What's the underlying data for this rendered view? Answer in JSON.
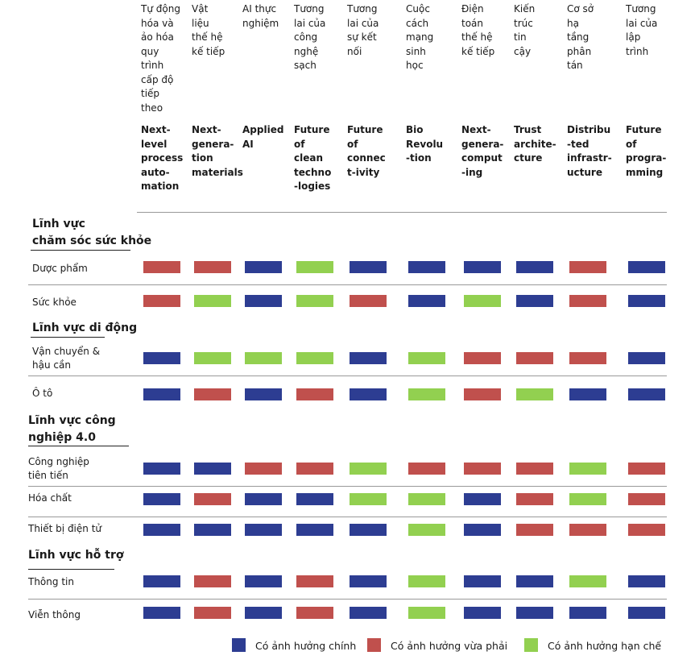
{
  "columns": [
    {
      "vi": "Tự động\nhóa và\nảo hóa\nquy\ntrình\ncấp độ\ntiếp\ntheo",
      "en": "Next-\nlevel\nprocess\nauto-\nmation"
    },
    {
      "vi": "Vật\nliệu\nthế hệ\nkế tiếp",
      "en": "Next-\ngenera-\ntion\nmaterials"
    },
    {
      "vi": "AI thực\nnghiệm",
      "en": "Applied\nAI"
    },
    {
      "vi": "Tương\nlai của\ncông\nnghệ\nsạch",
      "en": "Future\nof\nclean\ntechno\n-logies"
    },
    {
      "vi": "Tương\nlai của\nsự kết\nnối",
      "en": "Future\nof\nconnec\nt-ivity"
    },
    {
      "vi": "Cuộc\ncách\nmạng\nsinh\nhọc",
      "en": "Bio\nRevolu\n-tion"
    },
    {
      "vi": "Điện\ntoán\nthế hệ\nkế tiếp",
      "en": "Next-\ngenera-\ncomput\n-ing"
    },
    {
      "vi": "Kiến\ntrúc\ntin\ncậy",
      "en": "Trust\narchite-\ncture"
    },
    {
      "vi": "Cơ sở\nhạ\ntầng\nphân\ntán",
      "en": "Distribu\n-ted\ninfrastr-\nucture"
    },
    {
      "vi": "Tương\nlai của\nlập\ntrình",
      "en": "Future\nof\nprogra-\nmming"
    }
  ],
  "sections": [
    {
      "title": "Lĩnh vực\nchăm sóc sức khỏe",
      "rows": [
        {
          "label": "Dược phẩm",
          "impacts": [
            1,
            1,
            0,
            2,
            0,
            0,
            0,
            0,
            1,
            0
          ]
        },
        {
          "label": "Sức khỏe",
          "impacts": [
            1,
            2,
            0,
            2,
            1,
            0,
            2,
            0,
            1,
            0
          ]
        }
      ]
    },
    {
      "title": "Lĩnh vực di động",
      "rows": [
        {
          "label": "Vận chuyển &\nhậu cần",
          "impacts": [
            0,
            2,
            2,
            2,
            0,
            2,
            1,
            1,
            1,
            0
          ]
        },
        {
          "label": "Ô tô",
          "impacts": [
            0,
            1,
            0,
            1,
            0,
            2,
            1,
            2,
            0,
            0
          ]
        }
      ]
    },
    {
      "title": "Lĩnh vực công\nnghiệp 4.0",
      "rows": [
        {
          "label": "Công nghiệp\ntiên tiến",
          "impacts": [
            0,
            0,
            1,
            1,
            2,
            1,
            1,
            1,
            2,
            1
          ]
        },
        {
          "label": "Hóa chất",
          "impacts": [
            0,
            1,
            0,
            0,
            2,
            2,
            0,
            1,
            2,
            1
          ]
        },
        {
          "label": "Thiết bị điện tử",
          "impacts": [
            0,
            0,
            0,
            0,
            0,
            2,
            0,
            1,
            1,
            1
          ]
        }
      ]
    },
    {
      "title": "Lĩnh vực hỗ trợ",
      "rows": [
        {
          "label": "Thông tin",
          "impacts": [
            0,
            1,
            0,
            1,
            0,
            2,
            0,
            0,
            2,
            0
          ]
        },
        {
          "label": "Viễn thông",
          "impacts": [
            0,
            1,
            0,
            1,
            0,
            2,
            0,
            0,
            0,
            0
          ]
        }
      ]
    }
  ],
  "legend": [
    {
      "label": "Có ảnh hưởng chính",
      "color": "#2d3d92"
    },
    {
      "label": "Có ảnh hưởng vừa phải",
      "color": "#c0504d"
    },
    {
      "label": "Có ảnh hưởng hạn chế",
      "color": "#92d050"
    }
  ]
}
